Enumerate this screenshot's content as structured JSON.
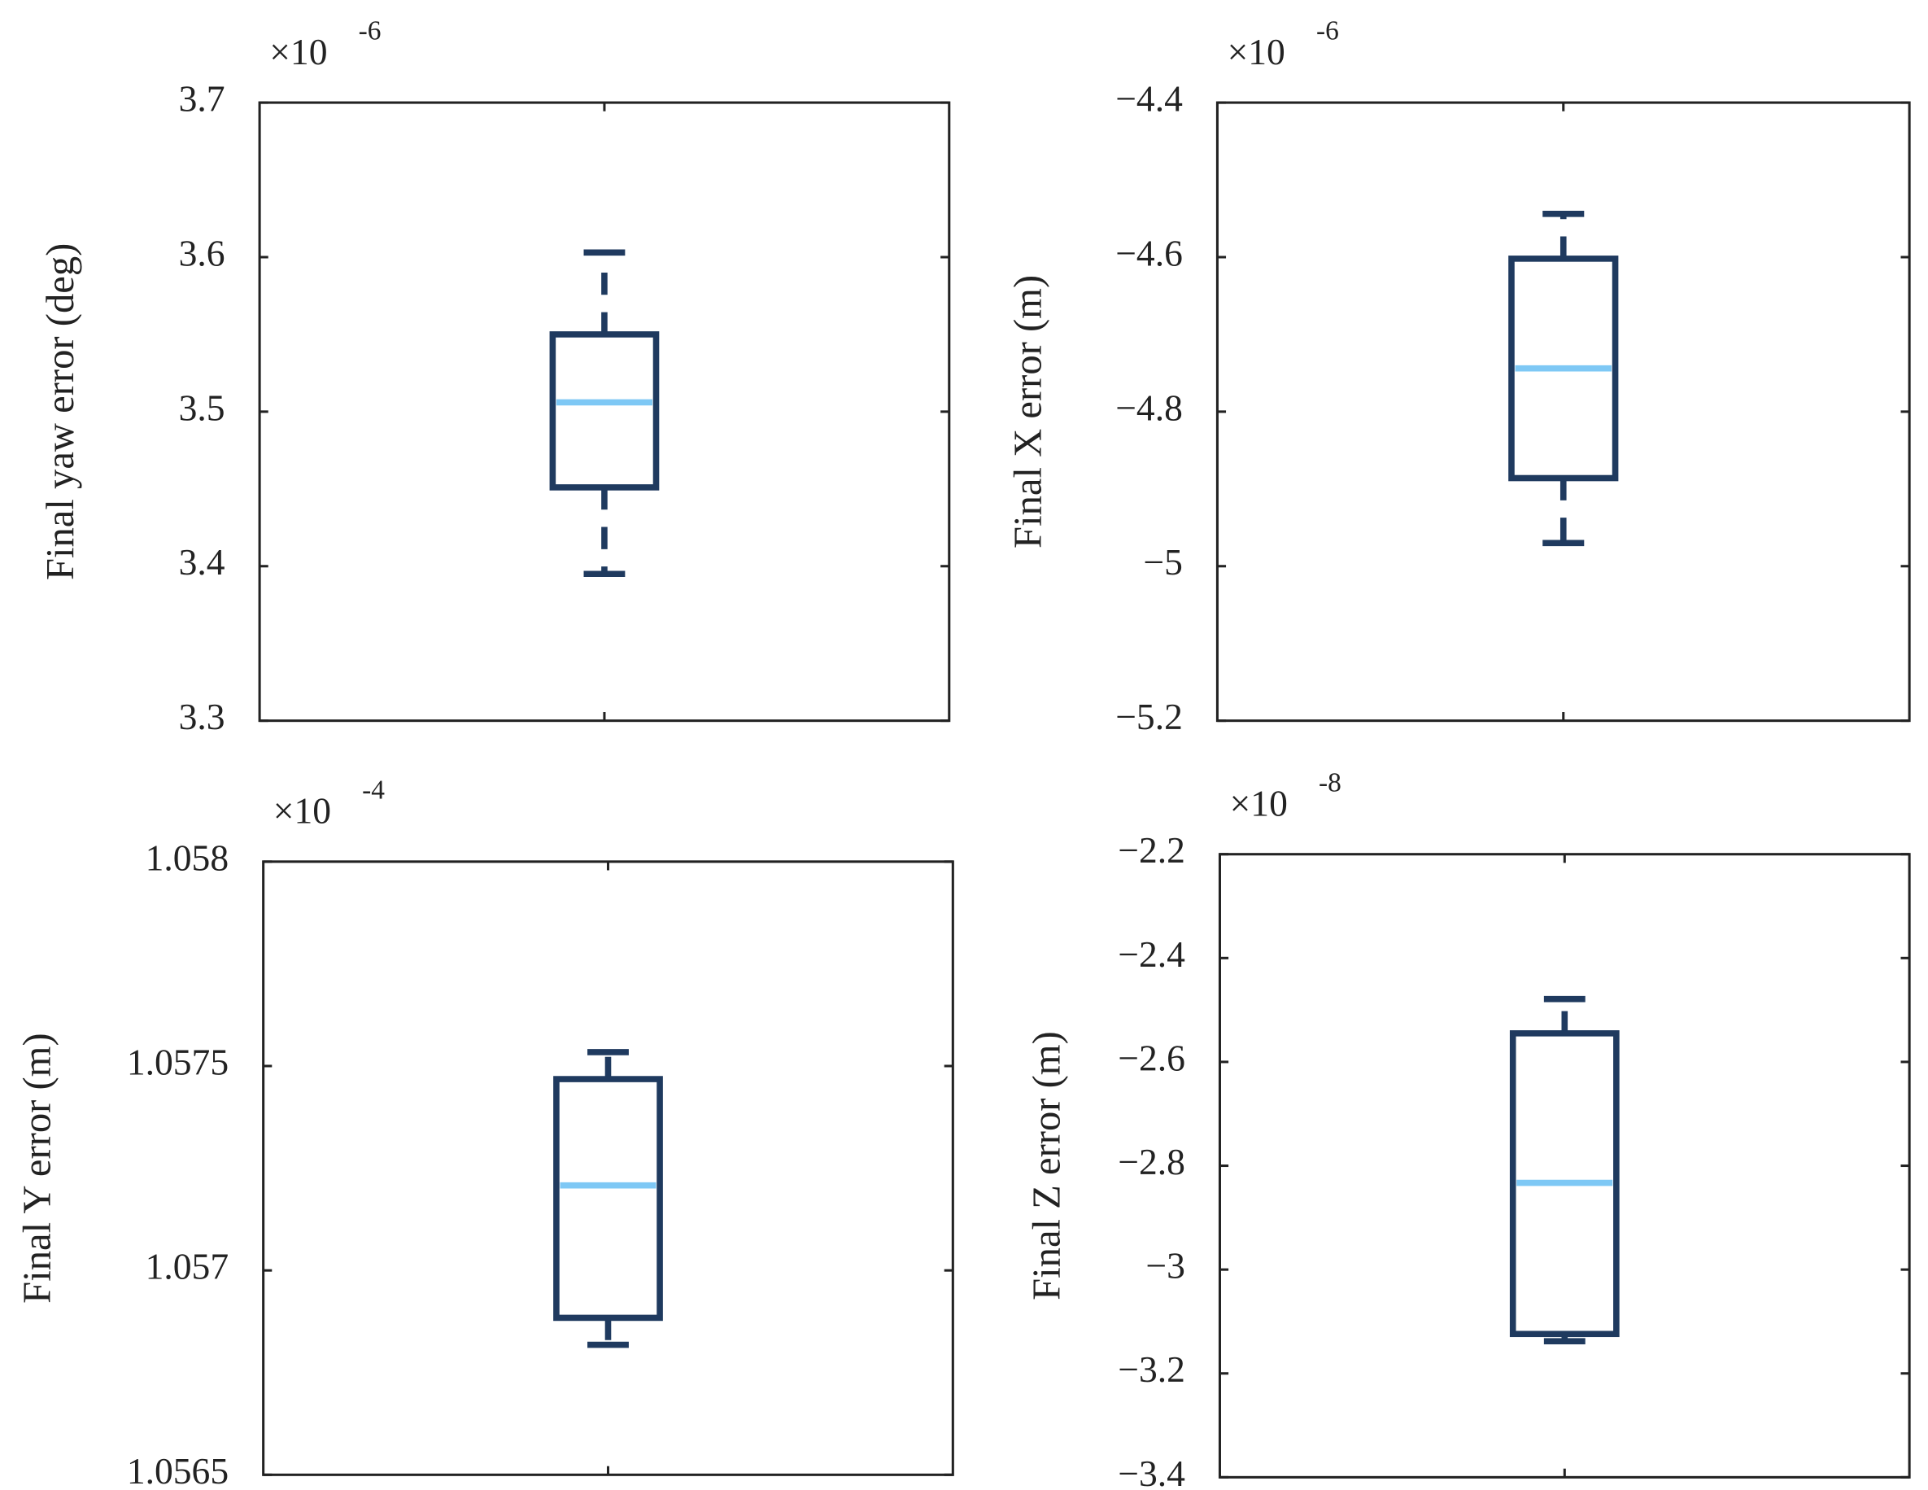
{
  "chart_data": [
    {
      "type": "box",
      "y_label": "Final yaw error (deg)",
      "exponent_base": "×10",
      "exponent_power": "-6",
      "ylim": [
        3.3,
        3.7
      ],
      "yticks": [
        3.3,
        3.4,
        3.5,
        3.6,
        3.7
      ],
      "min": 3.395,
      "q1": 3.451,
      "median": 3.506,
      "q3": 3.55,
      "max": 3.603,
      "color": "#1f3a5f",
      "median_color": "#7ec8f5"
    },
    {
      "type": "box",
      "y_label": "Final X error (m)",
      "exponent_base": "×10",
      "exponent_power": "-6",
      "ylim": [
        -5.2,
        -4.4
      ],
      "yticks": [
        {
          "value": -5.2,
          "label": "−5.2"
        },
        {
          "value": -5,
          "label": "−5"
        },
        {
          "value": -4.8,
          "label": "−4.8"
        },
        {
          "value": -4.6,
          "label": "−4.6"
        },
        {
          "value": -4.4,
          "label": "−4.4"
        }
      ],
      "min": -4.97,
      "q1": -4.886,
      "median": -4.744,
      "q3": -4.602,
      "max": -4.544,
      "color": "#1f3a5f",
      "median_color": "#7ec8f5"
    },
    {
      "type": "box",
      "y_label": "Final Y error (m)",
      "exponent_base": "×10",
      "exponent_power": "-4",
      "ylim": [
        1.0565,
        1.058
      ],
      "yticks": [
        1.0565,
        1.057,
        1.0575,
        1.058
      ],
      "min": 1.056818,
      "q1": 1.056884,
      "median": 1.057208,
      "q3": 1.057468,
      "max": 1.057534,
      "color": "#1f3a5f",
      "median_color": "#7ec8f5"
    },
    {
      "type": "box",
      "y_label": "Final Z error (m)",
      "exponent_base": "×10",
      "exponent_power": "-8",
      "ylim": [
        -3.4,
        -2.2
      ],
      "yticks": [
        {
          "value": -3.4,
          "label": "−3.4"
        },
        {
          "value": -3.2,
          "label": "−3.2"
        },
        {
          "value": -3,
          "label": "−3"
        },
        {
          "value": -2.8,
          "label": "−2.8"
        },
        {
          "value": -2.6,
          "label": "−2.6"
        },
        {
          "value": -2.4,
          "label": "−2.4"
        },
        {
          "value": -2.2,
          "label": "−2.2"
        }
      ],
      "min": -3.138,
      "q1": -3.124,
      "median": -2.833,
      "q3": -2.545,
      "max": -2.479,
      "color": "#1f3a5f",
      "median_color": "#7ec8f5"
    }
  ]
}
